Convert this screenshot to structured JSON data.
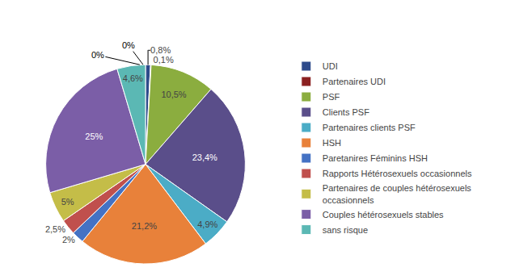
{
  "chart_data": {
    "type": "pie",
    "categories": [
      "UDI",
      "Partenaires UDI",
      "PSF",
      "Clients PSF",
      "Partenaires clients PSF",
      "HSH",
      "Paretanires Féminins HSH",
      "Rapports Hétérosexuels occasionnels",
      "Partenaires de couples hétérosexuels\noccasionnels",
      "Couples hétérosexuels stables",
      "sans risque"
    ],
    "values": [
      0.8,
      0.1,
      10.5,
      23.4,
      4.9,
      21.2,
      2.0,
      2.5,
      5.0,
      25.0,
      4.6
    ],
    "value_labels": [
      "0,8%",
      "0,1%",
      "10,5%",
      "23,4%",
      "4,9%",
      "21,2%",
      "2%",
      "2,5%",
      "5%",
      "25%",
      "4,6%"
    ],
    "data_labels": true,
    "colors": [
      "#2E4B8B",
      "#8B2020",
      "#8BAD3F",
      "#5A4E8A",
      "#4BACC6",
      "#E8813A",
      "#4472C4",
      "#C0504D",
      "#C4BD48",
      "#7B5EA7",
      "#5BB8B4"
    ],
    "legend": "right",
    "annotations": [
      {
        "text": "0%"
      },
      {
        "text": "0%"
      }
    ]
  }
}
